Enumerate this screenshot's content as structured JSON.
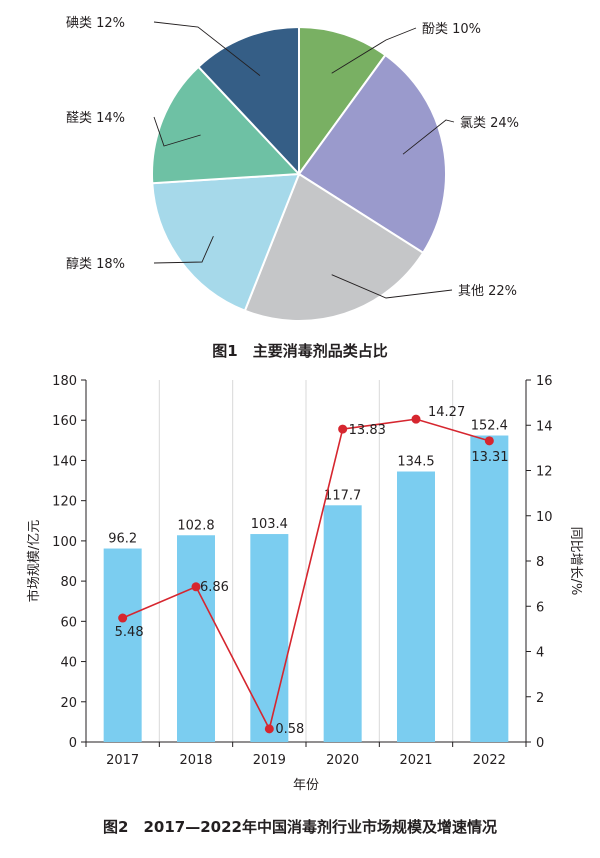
{
  "figure1": {
    "caption": "图1　主要消毒剂品类占比",
    "chart_data": {
      "type": "pie",
      "title": "",
      "slices": [
        {
          "label": "酚类",
          "value": 10,
          "display": "10%",
          "color": "#79b063"
        },
        {
          "label": "氯类",
          "value": 24,
          "display": "24%",
          "color": "#9a9acc"
        },
        {
          "label": "其他",
          "value": 22,
          "display": "22%",
          "color": "#c5c6c8"
        },
        {
          "label": "醇类",
          "value": 18,
          "display": "18%",
          "color": "#a6d9ea"
        },
        {
          "label": "醛类",
          "value": 14,
          "display": "14%",
          "color": "#6ec1a4"
        },
        {
          "label": "碘类",
          "value": 12,
          "display": "12%",
          "color": "#355e86"
        }
      ],
      "start": "12 o'clock, clockwise"
    }
  },
  "figure2": {
    "caption": "图2　2017—2022年中国消毒剂行业市场规模及增速情况",
    "chart_data": {
      "type": "bar+line",
      "categories": [
        "2017",
        "2018",
        "2019",
        "2020",
        "2021",
        "2022"
      ],
      "series": [
        {
          "name": "市场规模/亿元",
          "type": "bar",
          "axis": "left",
          "values": [
            96.2,
            102.8,
            103.4,
            117.7,
            134.5,
            152.4
          ],
          "labels": [
            "96.2",
            "102.8",
            "103.4",
            "117.7",
            "134.5",
            "152.4"
          ],
          "color": "#7bcdf0"
        },
        {
          "name": "同比增长/%",
          "type": "line",
          "axis": "right",
          "values": [
            5.48,
            6.86,
            0.58,
            13.83,
            14.27,
            13.31
          ],
          "labels": [
            "5.48",
            "6.86",
            "0.58",
            "13.83",
            "14.27",
            "13.31"
          ],
          "color": "#d6262f"
        }
      ],
      "xlabel": "年份",
      "ylabel": "市场规模/亿元",
      "y2label": "同比增长/%",
      "ylim": [
        0,
        180
      ],
      "y2lim": [
        0,
        16
      ],
      "yticks": [
        "0",
        "20",
        "40",
        "60",
        "80",
        "100",
        "120",
        "140",
        "160",
        "180"
      ],
      "y2ticks": [
        "0",
        "2",
        "4",
        "6",
        "8",
        "10",
        "12",
        "14",
        "16"
      ],
      "grid": "vertical lines at category boundaries"
    }
  }
}
